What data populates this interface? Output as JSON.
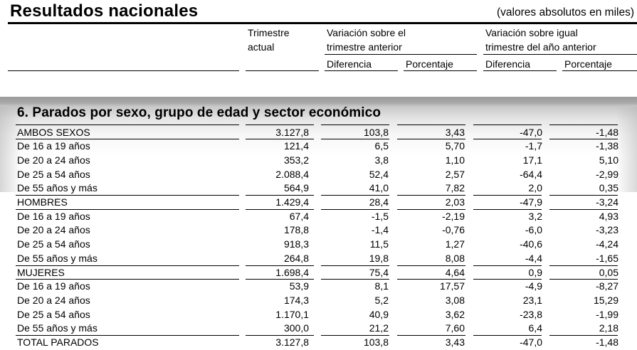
{
  "header": {
    "title": "Resultados nacionales",
    "units_note": "(valores absolutos en miles)",
    "col_trimestre_actual_line1": "Trimestre",
    "col_trimestre_actual_line2": "actual",
    "group_prev_quarter_line1": "Variación sobre el",
    "group_prev_quarter_line2": "trimestre anterior",
    "group_prev_year_line1": "Variación sobre igual",
    "group_prev_year_line2": "trimestre del año anterior",
    "sub_diferencia_1": "Diferencia",
    "sub_porcentaje_1": "Porcentaje",
    "sub_diferencia_2": "Diferencia",
    "sub_porcentaje_2": "Porcentaje"
  },
  "section": {
    "title": "6. Parados por sexo, grupo de edad y sector económico"
  },
  "table": {
    "columns": [
      "",
      "Trimestre actual",
      "Variación trimestre anterior - Diferencia",
      "Variación trimestre anterior - Porcentaje",
      "Variación igual trimestre año anterior - Diferencia",
      "Variación igual trimestre año anterior - Porcentaje"
    ],
    "rows": [
      {
        "label": "AMBOS SEXOS",
        "actual": "3.127,8",
        "dif_q": "103,8",
        "pct_q": "3,43",
        "dif_y": "-47,0",
        "pct_y": "-1,48",
        "kind": "group"
      },
      {
        "label": "De 16 a 19 años",
        "actual": "121,4",
        "dif_q": "6,5",
        "pct_q": "5,70",
        "dif_y": "-1,7",
        "pct_y": "-1,38",
        "kind": "item"
      },
      {
        "label": "De 20 a 24 años",
        "actual": "353,2",
        "dif_q": "3,8",
        "pct_q": "1,10",
        "dif_y": "17,1",
        "pct_y": "5,10",
        "kind": "item"
      },
      {
        "label": "De 25 a 54 años",
        "actual": "2.088,4",
        "dif_q": "52,4",
        "pct_q": "2,57",
        "dif_y": "-64,4",
        "pct_y": "-2,99",
        "kind": "item"
      },
      {
        "label": "De 55 años y más",
        "actual": "564,9",
        "dif_q": "41,0",
        "pct_q": "7,82",
        "dif_y": "2,0",
        "pct_y": "0,35",
        "kind": "item"
      },
      {
        "label": "HOMBRES",
        "actual": "1.429,4",
        "dif_q": "28,4",
        "pct_q": "2,03",
        "dif_y": "-47,9",
        "pct_y": "-3,24",
        "kind": "group"
      },
      {
        "label": "De 16 a 19 años",
        "actual": "67,4",
        "dif_q": "-1,5",
        "pct_q": "-2,19",
        "dif_y": "3,2",
        "pct_y": "4,93",
        "kind": "item"
      },
      {
        "label": "De 20 a 24 años",
        "actual": "178,8",
        "dif_q": "-1,4",
        "pct_q": "-0,76",
        "dif_y": "-6,0",
        "pct_y": "-3,23",
        "kind": "item"
      },
      {
        "label": "De 25 a 54 años",
        "actual": "918,3",
        "dif_q": "11,5",
        "pct_q": "1,27",
        "dif_y": "-40,6",
        "pct_y": "-4,24",
        "kind": "item"
      },
      {
        "label": "De 55 años y más",
        "actual": "264,8",
        "dif_q": "19,8",
        "pct_q": "8,08",
        "dif_y": "-4,4",
        "pct_y": "-1,65",
        "kind": "item"
      },
      {
        "label": "MUJERES",
        "actual": "1.698,4",
        "dif_q": "75,4",
        "pct_q": "4,64",
        "dif_y": "0,9",
        "pct_y": "0,05",
        "kind": "group"
      },
      {
        "label": "De 16 a 19 años",
        "actual": "53,9",
        "dif_q": "8,1",
        "pct_q": "17,57",
        "dif_y": "-4,9",
        "pct_y": "-8,27",
        "kind": "item"
      },
      {
        "label": "De 20 a 24 años",
        "actual": "174,3",
        "dif_q": "5,2",
        "pct_q": "3,08",
        "dif_y": "23,1",
        "pct_y": "15,29",
        "kind": "item"
      },
      {
        "label": "De 25 a 54 años",
        "actual": "1.170,1",
        "dif_q": "40,9",
        "pct_q": "3,62",
        "dif_y": "-23,8",
        "pct_y": "-1,99",
        "kind": "item"
      },
      {
        "label": "De 55 años y más",
        "actual": "300,0",
        "dif_q": "21,2",
        "pct_q": "7,60",
        "dif_y": "6,4",
        "pct_y": "2,18",
        "kind": "item"
      },
      {
        "label": "TOTAL  PARADOS",
        "actual": "3.127,8",
        "dif_q": "103,8",
        "pct_q": "3,43",
        "dif_y": "-47,0",
        "pct_y": "-1,48",
        "kind": "total"
      }
    ]
  }
}
